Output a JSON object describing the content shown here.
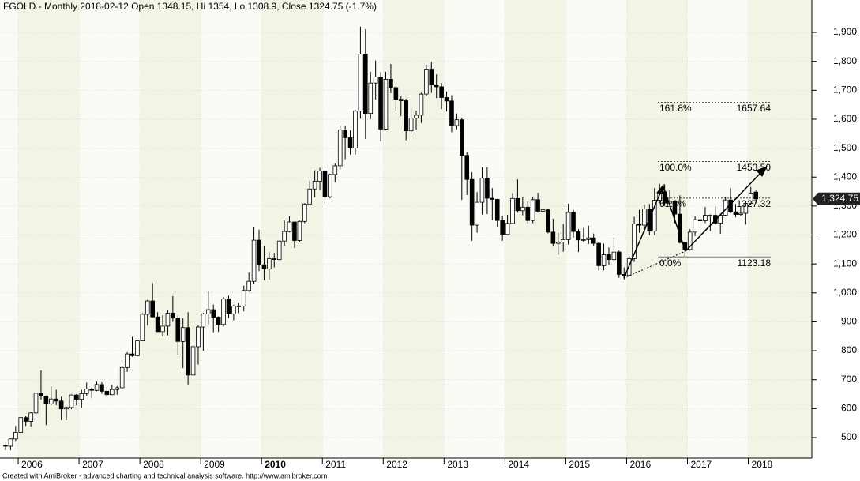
{
  "chart_data": {
    "type": "candlestick",
    "title": "FGOLD - Monthly 2018-02-12 Open 1348.15, Hi 1354, Lo 1308.9, Close 1324.75 (-1.7%)",
    "footer": "Created with AmiBroker - advanced charting and technical analysis software. http://www.amibroker.com",
    "x": [
      "2005-10",
      "2005-11",
      "2005-12",
      "2006-01",
      "2006-02",
      "2006-03",
      "2006-04",
      "2006-05",
      "2006-06",
      "2006-07",
      "2006-08",
      "2006-09",
      "2006-10",
      "2006-11",
      "2006-12",
      "2007-01",
      "2007-02",
      "2007-03",
      "2007-04",
      "2007-05",
      "2007-06",
      "2007-07",
      "2007-08",
      "2007-09",
      "2007-10",
      "2007-11",
      "2007-12",
      "2008-01",
      "2008-02",
      "2008-03",
      "2008-04",
      "2008-05",
      "2008-06",
      "2008-07",
      "2008-08",
      "2008-09",
      "2008-10",
      "2008-11",
      "2008-12",
      "2009-01",
      "2009-02",
      "2009-03",
      "2009-04",
      "2009-05",
      "2009-06",
      "2009-07",
      "2009-08",
      "2009-09",
      "2009-10",
      "2009-11",
      "2009-12",
      "2010-01",
      "2010-02",
      "2010-03",
      "2010-04",
      "2010-05",
      "2010-06",
      "2010-07",
      "2010-08",
      "2010-09",
      "2010-10",
      "2010-11",
      "2010-12",
      "2011-01",
      "2011-02",
      "2011-03",
      "2011-04",
      "2011-05",
      "2011-06",
      "2011-07",
      "2011-08",
      "2011-09",
      "2011-10",
      "2011-11",
      "2011-12",
      "2012-01",
      "2012-02",
      "2012-03",
      "2012-04",
      "2012-05",
      "2012-06",
      "2012-07",
      "2012-08",
      "2012-09",
      "2012-10",
      "2012-11",
      "2012-12",
      "2013-01",
      "2013-02",
      "2013-03",
      "2013-04",
      "2013-05",
      "2013-06",
      "2013-07",
      "2013-08",
      "2013-09",
      "2013-10",
      "2013-11",
      "2013-12",
      "2014-01",
      "2014-02",
      "2014-03",
      "2014-04",
      "2014-05",
      "2014-06",
      "2014-07",
      "2014-08",
      "2014-09",
      "2014-10",
      "2014-11",
      "2014-12",
      "2015-01",
      "2015-02",
      "2015-03",
      "2015-04",
      "2015-05",
      "2015-06",
      "2015-07",
      "2015-08",
      "2015-09",
      "2015-10",
      "2015-11",
      "2015-12",
      "2016-01",
      "2016-02",
      "2016-03",
      "2016-04",
      "2016-05",
      "2016-06",
      "2016-07",
      "2016-08",
      "2016-09",
      "2016-10",
      "2016-11",
      "2016-12",
      "2017-01",
      "2017-02",
      "2017-03",
      "2017-04",
      "2017-05",
      "2017-06",
      "2017-07",
      "2017-08",
      "2017-09",
      "2017-10",
      "2017-11",
      "2017-12",
      "2018-01",
      "2018-02"
    ],
    "open": [
      473,
      470,
      495,
      518,
      569,
      556,
      585,
      653,
      643,
      616,
      633,
      626,
      599,
      604,
      647,
      632,
      652,
      668,
      663,
      683,
      660,
      648,
      666,
      672,
      742,
      789,
      783,
      834,
      926,
      972,
      917,
      866,
      885,
      930,
      913,
      832,
      880,
      716,
      814,
      882,
      927,
      942,
      916,
      891,
      979,
      927,
      954,
      955,
      1008,
      1040,
      1182,
      1097,
      1083,
      1118,
      1115,
      1179,
      1212,
      1245,
      1181,
      1247,
      1307,
      1359,
      1386,
      1421,
      1332,
      1409,
      1439,
      1563,
      1536,
      1500,
      1628,
      1825,
      1620,
      1725,
      1746,
      1566,
      1738,
      1709,
      1669,
      1664,
      1560,
      1604,
      1614,
      1687,
      1773,
      1719,
      1712,
      1675,
      1663,
      1578,
      1598,
      1475,
      1392,
      1234,
      1313,
      1396,
      1327,
      1323,
      1250,
      1202,
      1240,
      1326,
      1284,
      1296,
      1250,
      1322,
      1282,
      1287,
      1210,
      1171,
      1175,
      1184,
      1278,
      1212,
      1183,
      1184,
      1190,
      1171,
      1094,
      1132,
      1115,
      1141,
      1064,
      1060,
      1118,
      1238,
      1234,
      1290,
      1214,
      1320,
      1349,
      1310,
      1316,
      1272,
      1174,
      1150,
      1210,
      1253,
      1249,
      1268,
      1268,
      1241,
      1268,
      1321,
      1280,
      1271,
      1275,
      1309,
      1348.15
    ],
    "high": [
      476,
      497,
      540,
      570,
      574,
      587,
      655,
      732,
      645,
      676,
      665,
      641,
      607,
      649,
      650,
      665,
      690,
      673,
      693,
      691,
      675,
      682,
      678,
      748,
      795,
      848,
      838,
      930,
      976,
      1033,
      933,
      923,
      940,
      989,
      921,
      912,
      933,
      826,
      888,
      931,
      1006,
      960,
      919,
      985,
      990,
      959,
      966,
      1025,
      1070,
      1226,
      1218,
      1162,
      1140,
      1138,
      1180,
      1250,
      1265,
      1245,
      1250,
      1310,
      1388,
      1424,
      1432,
      1424,
      1412,
      1447,
      1577,
      1577,
      1562,
      1632,
      1920,
      1911,
      1764,
      1803,
      1763,
      1764,
      1791,
      1715,
      1679,
      1671,
      1640,
      1630,
      1692,
      1789,
      1798,
      1755,
      1725,
      1696,
      1683,
      1620,
      1605,
      1488,
      1417,
      1348,
      1434,
      1434,
      1362,
      1325,
      1267,
      1270,
      1345,
      1392,
      1331,
      1315,
      1332,
      1346,
      1322,
      1290,
      1256,
      1208,
      1238,
      1308,
      1287,
      1220,
      1224,
      1232,
      1205,
      1175,
      1170,
      1157,
      1192,
      1146,
      1088,
      1127,
      1263,
      1287,
      1305,
      1307,
      1362,
      1377,
      1375,
      1357,
      1318,
      1337,
      1176,
      1220,
      1265,
      1264,
      1297,
      1271,
      1298,
      1274,
      1330,
      1362,
      1307,
      1299,
      1309,
      1366,
      1354
    ],
    "low": [
      456,
      456,
      488,
      516,
      540,
      538,
      583,
      631,
      543,
      611,
      612,
      560,
      560,
      598,
      611,
      603,
      643,
      636,
      660,
      651,
      640,
      647,
      648,
      670,
      727,
      779,
      780,
      834,
      887,
      925,
      868,
      849,
      853,
      900,
      786,
      740,
      681,
      705,
      752,
      800,
      890,
      864,
      865,
      884,
      913,
      905,
      930,
      936,
      1004,
      1032,
      1075,
      1044,
      1045,
      1088,
      1113,
      1163,
      1209,
      1155,
      1175,
      1241,
      1313,
      1330,
      1356,
      1309,
      1326,
      1382,
      1425,
      1462,
      1478,
      1478,
      1602,
      1532,
      1600,
      1668,
      1523,
      1562,
      1690,
      1627,
      1611,
      1527,
      1550,
      1563,
      1587,
      1680,
      1691,
      1673,
      1635,
      1627,
      1555,
      1565,
      1321,
      1338,
      1180,
      1208,
      1271,
      1272,
      1251,
      1227,
      1180,
      1200,
      1238,
      1277,
      1268,
      1240,
      1241,
      1282,
      1275,
      1206,
      1160,
      1131,
      1142,
      1167,
      1191,
      1141,
      1175,
      1169,
      1162,
      1077,
      1078,
      1098,
      1107,
      1052,
      1046,
      1061,
      1107,
      1208,
      1209,
      1199,
      1200,
      1310,
      1300,
      1305,
      1241,
      1171,
      1123,
      1146,
      1196,
      1195,
      1241,
      1214,
      1236,
      1204,
      1265,
      1275,
      1261,
      1266,
      1236,
      1302,
      1308.9
    ],
    "close": [
      470,
      495,
      518,
      569,
      556,
      585,
      653,
      643,
      616,
      633,
      626,
      599,
      604,
      647,
      632,
      652,
      668,
      663,
      683,
      660,
      648,
      666,
      672,
      742,
      789,
      783,
      834,
      926,
      972,
      917,
      866,
      885,
      930,
      913,
      832,
      880,
      716,
      814,
      882,
      927,
      942,
      916,
      891,
      979,
      927,
      954,
      955,
      1008,
      1040,
      1182,
      1097,
      1083,
      1118,
      1115,
      1179,
      1212,
      1245,
      1181,
      1247,
      1307,
      1359,
      1386,
      1421,
      1332,
      1409,
      1439,
      1563,
      1536,
      1500,
      1628,
      1825,
      1620,
      1725,
      1746,
      1566,
      1738,
      1709,
      1669,
      1664,
      1560,
      1604,
      1614,
      1687,
      1773,
      1719,
      1712,
      1675,
      1663,
      1578,
      1598,
      1475,
      1392,
      1234,
      1313,
      1396,
      1327,
      1323,
      1250,
      1202,
      1240,
      1326,
      1284,
      1296,
      1250,
      1322,
      1282,
      1287,
      1210,
      1171,
      1175,
      1184,
      1278,
      1212,
      1183,
      1184,
      1190,
      1171,
      1094,
      1132,
      1115,
      1141,
      1064,
      1060,
      1118,
      1238,
      1234,
      1290,
      1214,
      1320,
      1349,
      1310,
      1316,
      1272,
      1174,
      1150,
      1210,
      1253,
      1249,
      1268,
      1268,
      1241,
      1268,
      1321,
      1280,
      1271,
      1275,
      1309,
      1345,
      1324.75
    ],
    "last_price_label": "1,324.75",
    "ylim": [
      429,
      2012
    ],
    "yticks": [
      500,
      600,
      700,
      800,
      900,
      {
        "value": 1000,
        "label": "1,000"
      },
      {
        "value": 1100,
        "label": "1,100"
      },
      {
        "value": 1200,
        "label": "1,200"
      },
      {
        "value": 1300,
        "label": "1,300"
      },
      {
        "value": 1400,
        "label": "1,400"
      },
      {
        "value": 1500,
        "label": "1,500"
      },
      {
        "value": 1600,
        "label": "1,600"
      },
      {
        "value": 1700,
        "label": "1,700"
      },
      {
        "value": 1800,
        "label": "1,800"
      },
      {
        "value": 1900,
        "label": "1,900"
      }
    ],
    "xticks": [
      {
        "value": "2006-01",
        "label": "2006"
      },
      {
        "value": "2007-01",
        "label": "2007"
      },
      {
        "value": "2008-01",
        "label": "2008"
      },
      {
        "value": "2009-01",
        "label": "2009"
      },
      {
        "value": "2010-01",
        "label": "2010"
      },
      {
        "value": "2011-01",
        "label": "2011"
      },
      {
        "value": "2012-01",
        "label": "2012"
      },
      {
        "value": "2013-01",
        "label": "2013"
      },
      {
        "value": "2014-01",
        "label": "2014"
      },
      {
        "value": "2015-01",
        "label": "2015"
      },
      {
        "value": "2016-01",
        "label": "2016"
      },
      {
        "value": "2017-01",
        "label": "2017"
      },
      {
        "value": "2018-01",
        "label": "2018"
      }
    ],
    "fib_levels": [
      {
        "name": "161.8%",
        "value": 1657.64,
        "label": "1657.64"
      },
      {
        "name": "100.0%",
        "value": 1453.5,
        "label": "1453.50"
      },
      {
        "name": "61.8%",
        "value": 1327.32,
        "label": "1327.32"
      },
      {
        "name": "0.0%",
        "value": 1123.18,
        "label": "1123.18"
      }
    ],
    "grid": true
  }
}
